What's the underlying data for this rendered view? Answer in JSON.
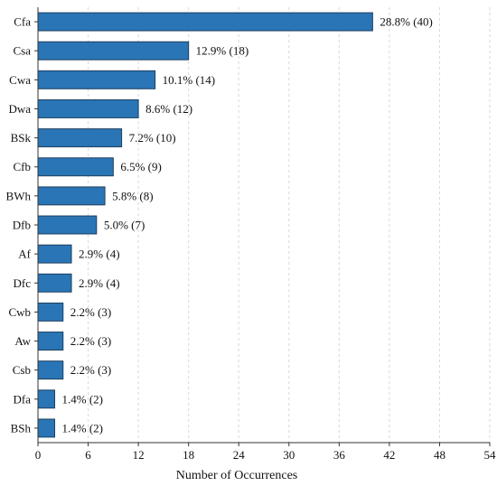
{
  "chart_data": {
    "type": "bar",
    "orientation": "horizontal",
    "title": "",
    "xlabel": "Number of Occurrences",
    "ylabel": "",
    "xlim": [
      0,
      54
    ],
    "xticks": [
      0,
      6,
      12,
      18,
      24,
      30,
      36,
      42,
      48,
      54
    ],
    "grid": true,
    "bar_color": "#2a75b5",
    "categories": [
      "Cfa",
      "Csa",
      "Cwa",
      "Dwa",
      "BSk",
      "Cfb",
      "BWh",
      "Dfb",
      "Af",
      "Dfc",
      "Cwb",
      "Aw",
      "Csb",
      "Dfa",
      "BSh"
    ],
    "values": [
      40,
      18,
      14,
      12,
      10,
      9,
      8,
      7,
      4,
      4,
      3,
      3,
      3,
      2,
      2
    ],
    "data_labels": [
      "28.8% (40)",
      "12.9% (18)",
      "10.1% (14)",
      "8.6% (12)",
      "7.2% (10)",
      "6.5% (9)",
      "5.8% (8)",
      "5.0% (7)",
      "2.9% (4)",
      "2.9% (4)",
      "2.2% (3)",
      "2.2% (3)",
      "2.2% (3)",
      "1.4% (2)",
      "1.4% (2)"
    ]
  }
}
